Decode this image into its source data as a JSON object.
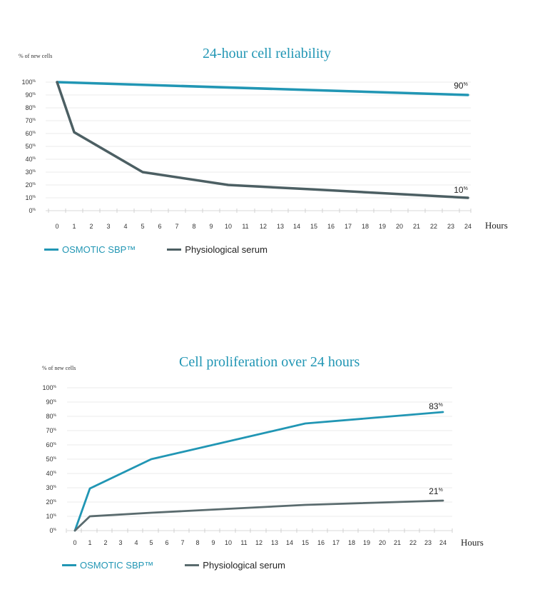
{
  "charts": [
    {
      "title": "24-hour cell reliability",
      "ylabel": "% of new cells",
      "legend": [
        "OSMOTIC SBP™",
        "Physiological serum"
      ]
    },
    {
      "title": "Cell proliferation over 24 hours",
      "ylabel": "% of new cells",
      "legend": [
        "OSMOTIC SBP™",
        "Physiological serum"
      ]
    }
  ],
  "chart_data": [
    {
      "type": "line",
      "title": "24-hour cell reliability",
      "ylabel": "% of new cells",
      "xlabel": "Hours",
      "x_ticks": [
        0,
        1,
        2,
        3,
        4,
        5,
        6,
        7,
        8,
        9,
        10,
        11,
        12,
        13,
        14,
        15,
        16,
        17,
        18,
        19,
        20,
        21,
        22,
        23,
        24
      ],
      "ylim": [
        0,
        100
      ],
      "y_ticks": [
        0,
        10,
        20,
        30,
        40,
        50,
        60,
        70,
        80,
        90,
        100
      ],
      "y_tick_suffix": "%",
      "grid": true,
      "legend_position": "bottom-left",
      "series": [
        {
          "name": "OSMOTIC SBP™",
          "color": "#2196b4",
          "x": [
            0,
            24
          ],
          "y": [
            100,
            90
          ],
          "end_label": "90%"
        },
        {
          "name": "Physiological serum",
          "color": "#4c5f63",
          "x": [
            0,
            1,
            5,
            10,
            15,
            24
          ],
          "y": [
            100,
            61,
            30,
            20,
            16.5,
            10
          ],
          "end_label": "10%"
        }
      ]
    },
    {
      "type": "line",
      "title": "Cell proliferation over 24 hours",
      "ylabel": "% of new cells",
      "xlabel": "Hours",
      "x_ticks": [
        0,
        1,
        2,
        3,
        4,
        5,
        6,
        7,
        8,
        9,
        10,
        11,
        12,
        13,
        14,
        15,
        16,
        17,
        18,
        19,
        20,
        21,
        22,
        23,
        24
      ],
      "ylim": [
        0,
        100
      ],
      "y_ticks": [
        0,
        10,
        20,
        30,
        40,
        50,
        60,
        70,
        80,
        90,
        100
      ],
      "y_tick_suffix": "%",
      "grid": true,
      "legend_position": "bottom-left",
      "series": [
        {
          "name": "OSMOTIC SBP™",
          "color": "#2196b4",
          "x": [
            0,
            1,
            5,
            15,
            24
          ],
          "y": [
            0,
            29.5,
            50,
            75,
            83
          ],
          "end_label": "83%"
        },
        {
          "name": "Physiological serum",
          "color": "#5a6b6e",
          "x": [
            0,
            1,
            5,
            15,
            24
          ],
          "y": [
            0,
            10,
            12.5,
            18,
            21
          ],
          "end_label": "21%"
        }
      ]
    }
  ]
}
